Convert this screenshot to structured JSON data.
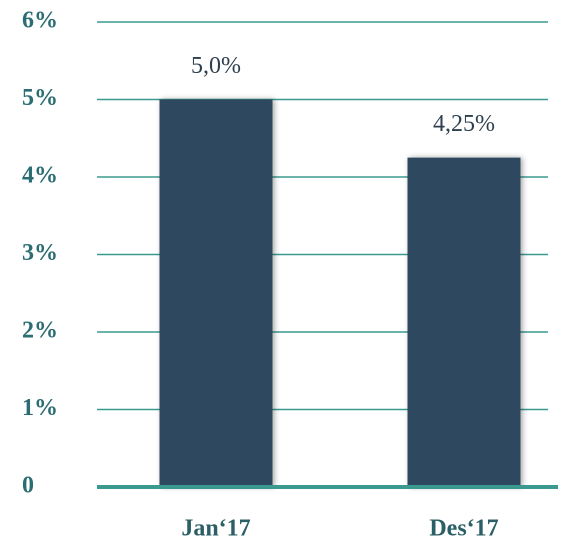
{
  "chart_data": {
    "type": "bar",
    "categories": [
      "Jan‘17",
      "Des‘17"
    ],
    "values": [
      5.0,
      4.25
    ],
    "value_labels": [
      "5,0%",
      "4,25%"
    ],
    "color": "#2e4a5e",
    "ylim": [
      0,
      6
    ],
    "yticks": [
      0,
      {
        "value": 1,
        "label": "1%"
      },
      {
        "value": 2,
        "label": "2%"
      },
      {
        "value": 3,
        "label": "3%"
      },
      {
        "value": 4,
        "label": "4%"
      },
      {
        "value": 5,
        "label": "5%"
      },
      {
        "value": 6,
        "label": "6%"
      }
    ],
    "grid": true
  }
}
